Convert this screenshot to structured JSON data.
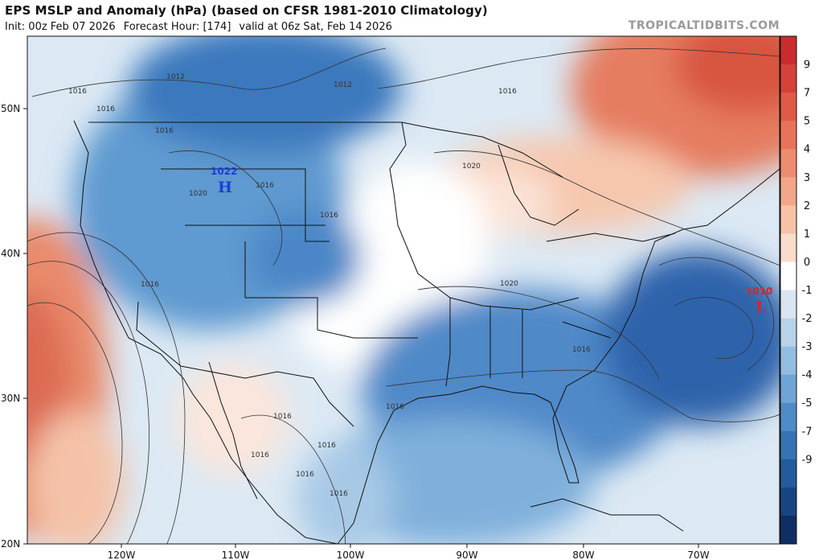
{
  "header": {
    "title": "EPS MSLP and Anomaly (hPa) (based on CFSR 1981-2010 Climatology)",
    "init": "Init: 00z Feb 07 2026",
    "forecast_hour": "Forecast Hour: [174]",
    "valid": "valid at 06z Sat, Feb 14 2026",
    "brand": "TROPICALTIDBITS.COM"
  },
  "map": {
    "lat_labels": [
      "50N",
      "40N",
      "30N",
      "20N"
    ],
    "lon_labels": [
      "120W",
      "110W",
      "100W",
      "90W",
      "80W",
      "70W"
    ],
    "isobar_labels": [
      "1016",
      "1016",
      "1016",
      "1012",
      "1012",
      "1016",
      "1016",
      "1016",
      "1020",
      "1020",
      "1016",
      "1016",
      "1020",
      "1016",
      "1016",
      "1016",
      "1016",
      "1016",
      "1016"
    ],
    "pressure_centers": [
      {
        "type": "H",
        "value": "1022",
        "color": "#1a3fd6"
      },
      {
        "type": "L",
        "value": "1010",
        "color": "#e0202a"
      }
    ]
  },
  "colorbar": {
    "labels": [
      "9",
      "7",
      "5",
      "4",
      "3",
      "2",
      "1",
      "0",
      "-1",
      "-2",
      "-3",
      "-4",
      "-5",
      "-7",
      "-9"
    ],
    "colors": [
      "#c92b2f",
      "#d5423a",
      "#e05a48",
      "#e8735b",
      "#ee8c70",
      "#f3a689",
      "#f7c2a8",
      "#fadccb",
      "#ffffff",
      "#d9e6f2",
      "#b7d3ea",
      "#93bde0",
      "#6fa4d4",
      "#4f8bc6",
      "#3573b4",
      "#235b9c",
      "#174483",
      "#0f2e63"
    ]
  }
}
